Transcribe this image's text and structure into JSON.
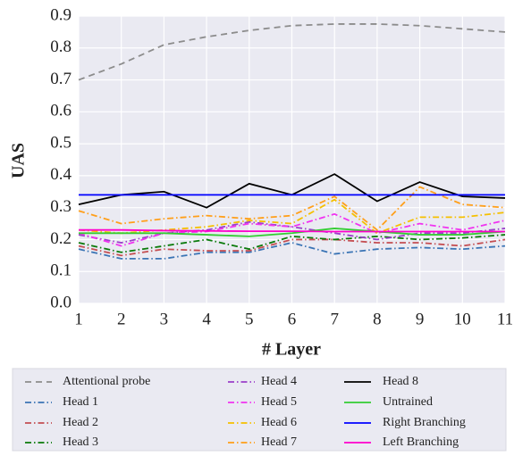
{
  "chart_data": {
    "type": "line",
    "xlabel": "# Layer",
    "ylabel": "UAS",
    "x": [
      1,
      2,
      3,
      4,
      5,
      6,
      7,
      8,
      9,
      10,
      11
    ],
    "xlim": [
      1,
      11
    ],
    "ylim": [
      0,
      0.9
    ],
    "xticks": [
      1,
      2,
      3,
      4,
      5,
      6,
      7,
      8,
      9,
      10,
      11
    ],
    "yticks": [
      {
        "value": 0,
        "label": "0.0"
      },
      0.1,
      0.2,
      0.3,
      0.4,
      0.5,
      0.6,
      0.7,
      0.8,
      0.9
    ],
    "grid": true,
    "legend": "bottom",
    "series": [
      {
        "name": "Attentional probe",
        "color": "#8c8c8c",
        "dash": "dashed",
        "values": [
          0.7,
          0.75,
          0.81,
          0.835,
          0.855,
          0.87,
          0.875,
          0.875,
          0.87,
          0.86,
          0.85
        ]
      },
      {
        "name": "Head 1",
        "color": "#3a74b5",
        "dash": "dashdot",
        "values": [
          0.17,
          0.14,
          0.14,
          0.16,
          0.16,
          0.19,
          0.155,
          0.17,
          0.175,
          0.17,
          0.18
        ]
      },
      {
        "name": "Head 2",
        "color": "#c44e52",
        "dash": "dashdot",
        "values": [
          0.18,
          0.15,
          0.17,
          0.165,
          0.165,
          0.2,
          0.2,
          0.19,
          0.19,
          0.18,
          0.2
        ]
      },
      {
        "name": "Head 3",
        "color": "#0a7a0a",
        "dash": "dashdot",
        "values": [
          0.19,
          0.16,
          0.18,
          0.2,
          0.17,
          0.21,
          0.2,
          0.21,
          0.2,
          0.205,
          0.215
        ]
      },
      {
        "name": "Head 4",
        "color": "#9b3fc9",
        "dash": "dashdot",
        "values": [
          0.215,
          0.19,
          0.22,
          0.23,
          0.255,
          0.24,
          0.22,
          0.2,
          0.22,
          0.22,
          0.235
        ]
      },
      {
        "name": "Head 5",
        "color": "#f033f0",
        "dash": "dashdot",
        "values": [
          0.22,
          0.18,
          0.22,
          0.225,
          0.25,
          0.24,
          0.28,
          0.22,
          0.25,
          0.23,
          0.26
        ]
      },
      {
        "name": "Head 6",
        "color": "#f5c000",
        "dash": "dashdot",
        "values": [
          0.23,
          0.22,
          0.23,
          0.24,
          0.26,
          0.25,
          0.325,
          0.22,
          0.27,
          0.27,
          0.285
        ]
      },
      {
        "name": "Head 7",
        "color": "#ff9f1a",
        "dash": "dashdot",
        "values": [
          0.29,
          0.25,
          0.265,
          0.275,
          0.265,
          0.275,
          0.335,
          0.23,
          0.365,
          0.31,
          0.3
        ]
      },
      {
        "name": "Head 8",
        "color": "#000000",
        "dash": "solid",
        "values": [
          0.31,
          0.34,
          0.35,
          0.3,
          0.375,
          0.34,
          0.405,
          0.32,
          0.38,
          0.335,
          0.33
        ]
      },
      {
        "name": "Untrained",
        "color": "#33cc33",
        "dash": "solid",
        "values": [
          0.22,
          0.22,
          0.22,
          0.215,
          0.21,
          0.22,
          0.235,
          0.225,
          0.215,
          0.215,
          0.225
        ]
      },
      {
        "name": "Right Branching",
        "color": "#0000ff",
        "dash": "solid",
        "values": [
          0.34,
          0.34,
          0.34,
          0.34,
          0.34,
          0.34,
          0.34,
          0.34,
          0.34,
          0.34,
          0.34
        ]
      },
      {
        "name": "Left Branching",
        "color": "#ff00cc",
        "dash": "solid",
        "values": [
          0.23,
          0.23,
          0.228,
          0.227,
          0.226,
          0.226,
          0.225,
          0.225,
          0.225,
          0.225,
          0.225
        ]
      }
    ]
  }
}
